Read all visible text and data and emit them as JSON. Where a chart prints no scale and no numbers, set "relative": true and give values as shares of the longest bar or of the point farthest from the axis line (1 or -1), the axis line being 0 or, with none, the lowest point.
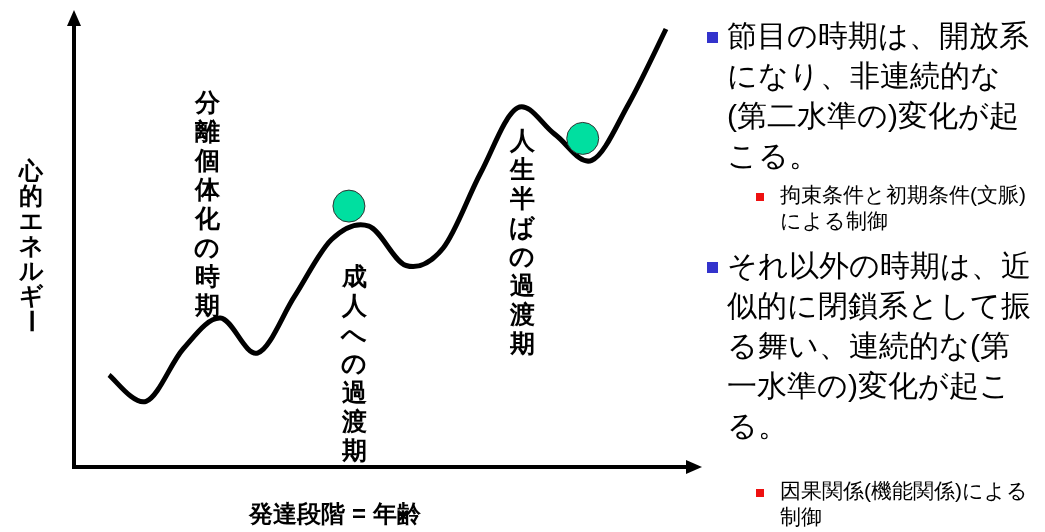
{
  "chart_data": {
    "type": "line",
    "relative": true,
    "xlabel": "発達段階 = 年齢",
    "ylabel": "心的エネルギー",
    "color": "#000000",
    "marker": "none",
    "categories": [
      null,
      null,
      null,
      null,
      null,
      null,
      null,
      null,
      null,
      null,
      null,
      null,
      null,
      null,
      null,
      null
    ],
    "values": [
      0.21,
      0.15,
      0.27,
      0.34,
      0.26,
      0.39,
      0.52,
      0.55,
      0.46,
      0.5,
      0.67,
      0.82,
      0.76,
      0.7,
      0.83,
      1
    ],
    "annotations": [
      "分離個体化の時期",
      "成人への過渡期",
      "人生半ばの過渡期",
      "節目の時期は、開放系になり、非連続的な(第二水準の)変化が起こる。",
      "拘束条件と初期条件(文脈)による制御",
      "それ以外の時期は、近似的に閉鎖系として振る舞い、連続的な(第一水準の)変化が起こる。",
      "因果関係(機能関係)による制御"
    ]
  }
}
